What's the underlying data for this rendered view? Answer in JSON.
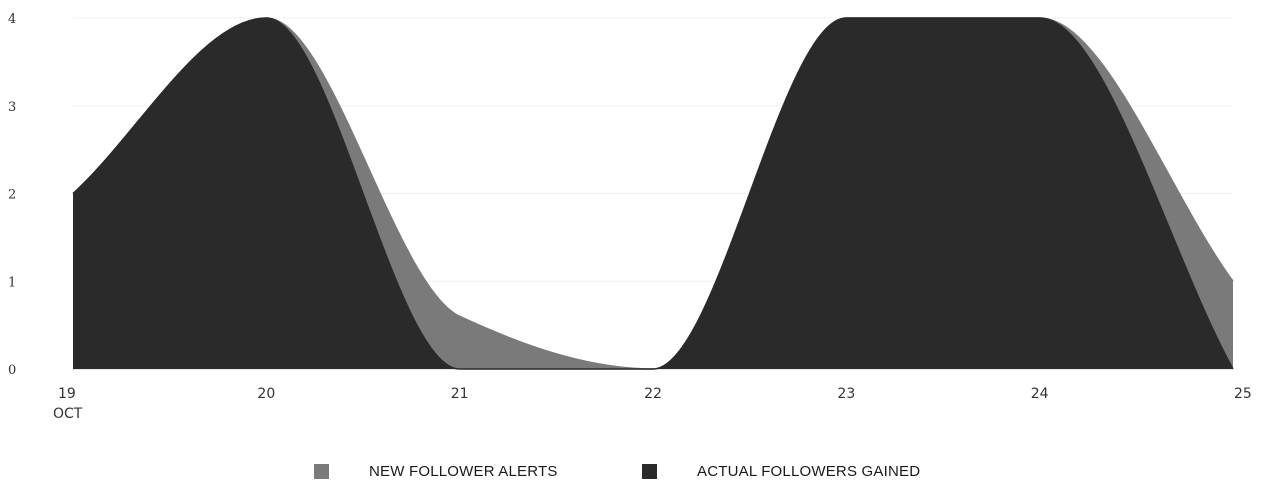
{
  "chart_data": {
    "type": "area",
    "x": [
      "19",
      "20",
      "21",
      "22",
      "23",
      "24",
      "25"
    ],
    "x_sublabels": [
      "OCT",
      "",
      "",
      "",
      "",
      "",
      ""
    ],
    "ylim": [
      0,
      4
    ],
    "yticks": [
      "0",
      "1",
      "2",
      "3",
      "4"
    ],
    "series": [
      {
        "name": "NEW FOLLOWER ALERTS",
        "values": [
          2,
          4,
          0.6,
          0,
          4,
          4,
          1
        ],
        "color": "#7a7a7a"
      },
      {
        "name": "ACTUAL FOLLOWERS GAINED",
        "values": [
          2,
          4,
          0,
          0,
          4,
          4,
          0
        ],
        "color": "#2a2a2a"
      }
    ],
    "grid": true,
    "legend_position": "bottom-center"
  },
  "legend": {
    "new_alerts_label": "NEW FOLLOWER ALERTS",
    "actual_gained_label": "ACTUAL FOLLOWERS GAINED"
  }
}
